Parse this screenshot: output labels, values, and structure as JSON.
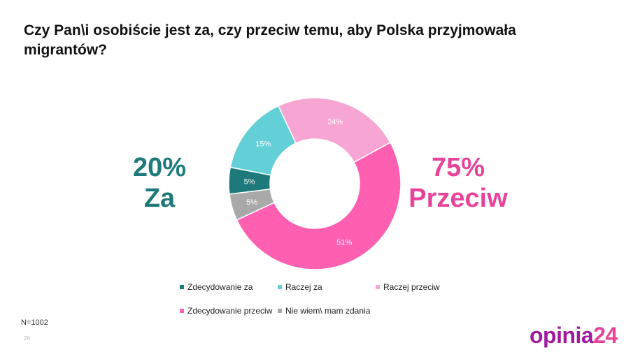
{
  "title": "Czy Pan\\i osobiście jest za, czy przeciw temu, aby Polska przyjmowała migrantów?",
  "summary": {
    "left_value": "20%",
    "left_label": "Za",
    "left_color": "#1e7a7a",
    "right_value": "75%",
    "right_label": "Przeciw",
    "right_color": "#e8439a"
  },
  "chart_data": {
    "type": "pie",
    "donut": true,
    "title": "",
    "slices": [
      {
        "label": "Zdecydowanie za",
        "value": 5,
        "display": "5%",
        "color": "#1e7a7a"
      },
      {
        "label": "Raczej za",
        "value": 15,
        "display": "15%",
        "color": "#63cfd6"
      },
      {
        "label": "Raczej przeciw",
        "value": 24,
        "display": "24%",
        "color": "#f7a6d3"
      },
      {
        "label": "Zdecydowanie przeciw",
        "value": 51,
        "display": "51%",
        "color": "#ff5fb1"
      },
      {
        "label": "Nie wiem\\ mam zdania",
        "value": 5,
        "display": "5%",
        "color": "#a9a9a9"
      }
    ],
    "start_slice_order": [
      "Zdecydowanie za",
      "Raczej za",
      "Raczej przeciw",
      "Zdecydowanie przeciw",
      "Nie wiem\\ mam zdania"
    ],
    "legend_position": "bottom"
  },
  "legend": [
    {
      "label": "Zdecydowanie za",
      "color": "#1e7a7a"
    },
    {
      "label": "Raczej za",
      "color": "#63cfd6"
    },
    {
      "label": "Raczej przeciw",
      "color": "#f7a6d3"
    },
    {
      "label": "Zdecydowanie przeciw",
      "color": "#ff5fb1"
    },
    {
      "label": "Nie wiem\\ mam zdania",
      "color": "#a9a9a9"
    }
  ],
  "footer": {
    "sample_size": "N=1002",
    "page_number": "26",
    "logo_main": "opinia",
    "logo_accent": "24"
  }
}
